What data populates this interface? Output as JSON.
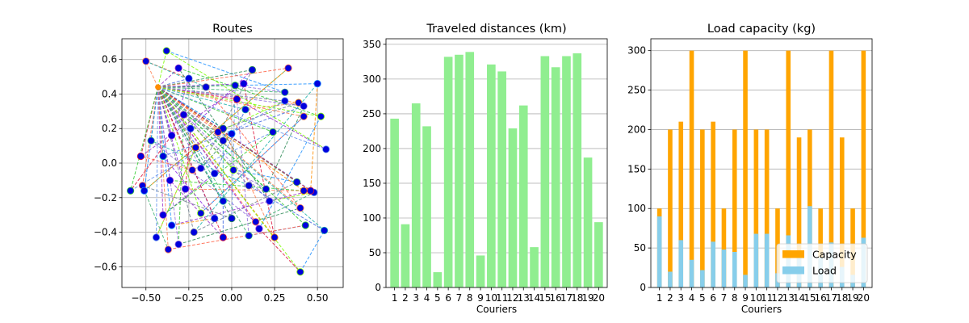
{
  "chart_data": [
    {
      "type": "scatter",
      "title": "Routes",
      "xlabel": "",
      "ylabel": "",
      "xlim": [
        -0.64,
        0.65
      ],
      "ylim": [
        -0.72,
        0.72
      ],
      "xticks": [
        -0.5,
        -0.25,
        0.0,
        0.25,
        0.5
      ],
      "xtick_labels": [
        "−0.50",
        "−0.25",
        "0.00",
        "0.25",
        "0.50"
      ],
      "yticks": [
        -0.6,
        -0.4,
        -0.2,
        0.0,
        0.2,
        0.4,
        0.6
      ],
      "ytick_labels": [
        "−0.6",
        "−0.4",
        "−0.2",
        "0.0",
        "0.2",
        "0.4",
        "0.6"
      ],
      "grid": true,
      "depot": {
        "x": -0.43,
        "y": 0.44
      },
      "points": [
        {
          "x": -0.5,
          "y": 0.59
        },
        {
          "x": -0.38,
          "y": 0.65
        },
        {
          "x": -0.31,
          "y": 0.55
        },
        {
          "x": -0.25,
          "y": 0.49
        },
        {
          "x": 0.12,
          "y": 0.54
        },
        {
          "x": 0.33,
          "y": 0.55
        },
        {
          "x": 0.5,
          "y": 0.46
        },
        {
          "x": 0.02,
          "y": 0.45
        },
        {
          "x": 0.07,
          "y": 0.46
        },
        {
          "x": -0.15,
          "y": 0.44
        },
        {
          "x": 0.31,
          "y": 0.41
        },
        {
          "x": 0.39,
          "y": 0.35
        },
        {
          "x": 0.31,
          "y": 0.36
        },
        {
          "x": 0.03,
          "y": 0.37
        },
        {
          "x": 0.08,
          "y": 0.31
        },
        {
          "x": 0.42,
          "y": 0.33
        },
        {
          "x": 0.42,
          "y": 0.27
        },
        {
          "x": 0.52,
          "y": 0.27
        },
        {
          "x": -0.28,
          "y": 0.28
        },
        {
          "x": -0.24,
          "y": 0.2
        },
        {
          "x": -0.05,
          "y": 0.2
        },
        {
          "x": -0.08,
          "y": 0.18
        },
        {
          "x": 0.0,
          "y": 0.17
        },
        {
          "x": 0.24,
          "y": 0.18
        },
        {
          "x": -0.35,
          "y": 0.16
        },
        {
          "x": -0.05,
          "y": 0.13
        },
        {
          "x": -0.47,
          "y": 0.13
        },
        {
          "x": -0.21,
          "y": 0.09
        },
        {
          "x": 0.55,
          "y": 0.08
        },
        {
          "x": -0.53,
          "y": 0.04
        },
        {
          "x": -0.4,
          "y": 0.04
        },
        {
          "x": -0.18,
          "y": -0.03
        },
        {
          "x": -0.23,
          "y": -0.04
        },
        {
          "x": 0.01,
          "y": -0.04
        },
        {
          "x": -0.36,
          "y": -0.1
        },
        {
          "x": -0.1,
          "y": -0.06
        },
        {
          "x": 0.38,
          "y": -0.11
        },
        {
          "x": -0.52,
          "y": -0.13
        },
        {
          "x": -0.51,
          "y": -0.16
        },
        {
          "x": -0.59,
          "y": -0.16
        },
        {
          "x": -0.27,
          "y": -0.15
        },
        {
          "x": 0.1,
          "y": -0.13
        },
        {
          "x": 0.2,
          "y": -0.15
        },
        {
          "x": 0.42,
          "y": -0.16
        },
        {
          "x": 0.48,
          "y": -0.17
        },
        {
          "x": 0.46,
          "y": -0.16
        },
        {
          "x": -0.05,
          "y": -0.22
        },
        {
          "x": 0.22,
          "y": -0.22
        },
        {
          "x": 0.4,
          "y": -0.26
        },
        {
          "x": -0.18,
          "y": -0.29
        },
        {
          "x": -0.4,
          "y": -0.3
        },
        {
          "x": -0.1,
          "y": -0.32
        },
        {
          "x": 0.0,
          "y": -0.32
        },
        {
          "x": 0.14,
          "y": -0.34
        },
        {
          "x": -0.35,
          "y": -0.36
        },
        {
          "x": 0.43,
          "y": -0.36
        },
        {
          "x": 0.16,
          "y": -0.38
        },
        {
          "x": -0.22,
          "y": -0.4
        },
        {
          "x": 0.1,
          "y": -0.42
        },
        {
          "x": 0.25,
          "y": -0.43
        },
        {
          "x": -0.44,
          "y": -0.43
        },
        {
          "x": -0.05,
          "y": -0.43
        },
        {
          "x": 0.54,
          "y": -0.39
        },
        {
          "x": -0.31,
          "y": -0.47
        },
        {
          "x": -0.37,
          "y": -0.5
        },
        {
          "x": 0.4,
          "y": -0.63
        }
      ]
    },
    {
      "type": "bar",
      "title": "Traveled distances (km)",
      "xlabel": "Couriers",
      "ylabel": "",
      "categories": [
        "1",
        "2",
        "3",
        "4",
        "5",
        "6",
        "7",
        "8",
        "9",
        "10",
        "11",
        "12",
        "13",
        "14",
        "15",
        "16",
        "17",
        "18",
        "19",
        "20"
      ],
      "values": [
        243,
        91,
        265,
        232,
        22,
        332,
        335,
        339,
        46,
        321,
        311,
        229,
        262,
        58,
        333,
        317,
        333,
        337,
        187,
        94
      ],
      "ylim": [
        0,
        358
      ],
      "yticks": [
        0,
        50,
        100,
        150,
        200,
        250,
        300,
        350
      ],
      "color": "#90ee90",
      "grid": "y"
    },
    {
      "type": "bar",
      "title": "Load capacity (kg)",
      "xlabel": "Couriers",
      "ylabel": "",
      "categories": [
        "1",
        "2",
        "3",
        "4",
        "5",
        "6",
        "7",
        "8",
        "9",
        "10",
        "11",
        "12",
        "13",
        "14",
        "15",
        "16",
        "17",
        "18",
        "19",
        "20"
      ],
      "series": [
        {
          "name": "Capacity",
          "color": "#ffa500",
          "values": [
            100,
            200,
            210,
            300,
            200,
            210,
            100,
            200,
            300,
            200,
            200,
            100,
            300,
            190,
            200,
            100,
            300,
            190,
            100,
            300
          ]
        },
        {
          "name": "Load",
          "color": "#87ceeb",
          "values": [
            90,
            20,
            60,
            35,
            22,
            58,
            48,
            45,
            16,
            68,
            68,
            18,
            66,
            47,
            103,
            38,
            57,
            26,
            16,
            63
          ]
        }
      ],
      "ylim": [
        0,
        315
      ],
      "yticks": [
        0,
        50,
        100,
        150,
        200,
        250,
        300
      ],
      "legend": "lower-right",
      "grid": "y"
    }
  ]
}
